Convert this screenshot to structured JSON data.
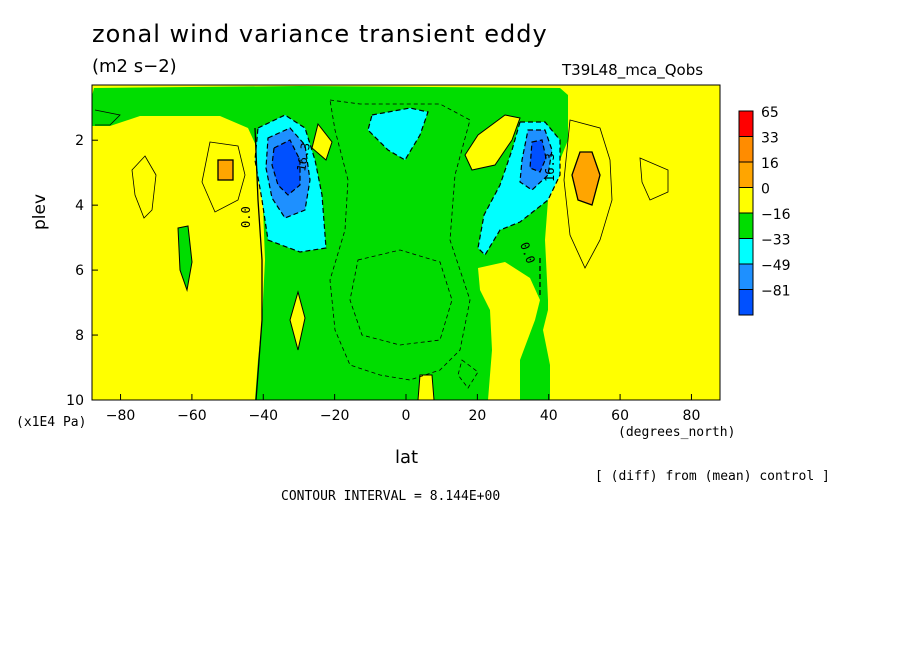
{
  "chart_data": {
    "type": "contour",
    "title": "zonal wind variance transient eddy",
    "units": "(m2 s−2)",
    "run_label": "T39L48_mca_Qobs",
    "xlabel": "lat",
    "xunit": "(degrees_north)",
    "ylabel": "plev",
    "yunit": "(x1E4 Pa)",
    "xlim": [
      -88,
      88
    ],
    "ylim": [
      10,
      0.3
    ],
    "x_ticks": [
      -80,
      -60,
      -40,
      -20,
      0,
      20,
      40,
      60,
      80
    ],
    "y_ticks": [
      2,
      4,
      6,
      8,
      10
    ],
    "colorbar": {
      "levels": [
        "65",
        "33",
        "16",
        "0",
        "−16",
        "−33",
        "−49",
        "−81"
      ],
      "colors": [
        "#ff0000",
        "#ff8c00",
        "#ffa500",
        "#ffff00",
        "#00dd00",
        "#00ffff",
        "#1e90ff",
        "#0050ff"
      ]
    },
    "contour_labels": [
      "0.0",
      "16.3",
      "16.3",
      "0.0"
    ],
    "annotations": {
      "diff_note": "[ (diff) from (mean) control ]",
      "contour_interval": "CONTOUR INTERVAL = 8.144E+00"
    },
    "features": [
      {
        "name": "negative-minimum-sh",
        "lat": -35,
        "plev": 2.7,
        "approx_value": -49
      },
      {
        "name": "negative-minimum-nh",
        "lat": 37,
        "plev": 2.5,
        "approx_value": -49
      },
      {
        "name": "negative-center-tropics",
        "lat": -5,
        "plev": 1.7,
        "approx_value": -16
      },
      {
        "name": "positive-max-nh",
        "lat": 49,
        "plev": 2.8,
        "approx_value": 16
      },
      {
        "name": "positive-max-sh",
        "lat": -50,
        "plev": 2.7,
        "approx_value": 16
      }
    ]
  }
}
